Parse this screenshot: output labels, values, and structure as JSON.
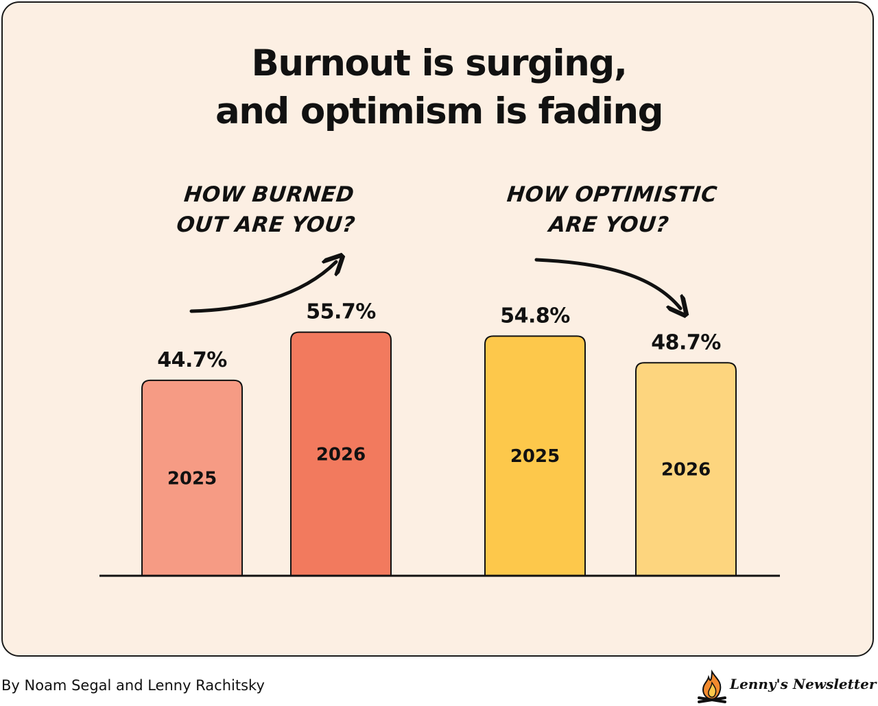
{
  "title": {
    "line1": "Burnout is surging,",
    "line2": "and optimism is fading"
  },
  "chart_data": [
    {
      "type": "bar",
      "question": [
        "HOW BURNED",
        "OUT ARE YOU?"
      ],
      "categories": [
        "2025",
        "2026"
      ],
      "values": [
        44.7,
        55.7
      ],
      "value_labels": [
        "44.7%",
        "55.7%"
      ],
      "colors": [
        "#f69b84",
        "#f27a5e"
      ],
      "trend": "up"
    },
    {
      "type": "bar",
      "question": [
        "HOW OPTIMISTIC",
        "ARE YOU?"
      ],
      "categories": [
        "2025",
        "2026"
      ],
      "values": [
        54.8,
        48.7
      ],
      "value_labels": [
        "54.8%",
        "48.7%"
      ],
      "colors": [
        "#fdc84b",
        "#fdd57e"
      ],
      "trend": "down"
    }
  ],
  "footer": {
    "byline": "By Noam Segal and Lenny Rachitsky",
    "brand": "Lenny's Newsletter"
  },
  "colors": {
    "background": "#fcefe3",
    "ink": "#111111",
    "flame_outer": "#f28a2e",
    "flame_inner": "#fdc84b"
  },
  "icons": {
    "brand_logo": "campfire-icon",
    "burnout_trend": "curved-arrow-up-icon",
    "optimism_trend": "curved-arrow-down-icon"
  }
}
